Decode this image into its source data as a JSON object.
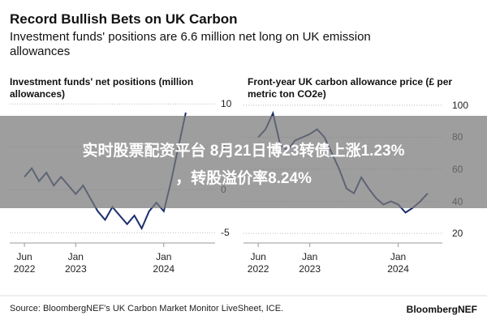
{
  "title": "Record Bullish Bets on UK Carbon",
  "subtitle": "Investment funds' positions are 6.6 million net long on UK emission allowances",
  "source": "Source: BloombergNEF's UK Carbon Market Monitor LiveSheet, ICE.",
  "brand": "BloombergNEF",
  "overlay": {
    "lines": [
      "实时股票配资平台 8月21日博23转债上涨1.23%",
      "，转股溢价率8.24%"
    ]
  },
  "chart_data": [
    {
      "type": "line",
      "title": "Investment funds' net positions (million allowances)",
      "x": [
        "2022-06",
        "2022-07",
        "2022-08",
        "2022-09",
        "2022-10",
        "2022-11",
        "2022-12",
        "2023-01",
        "2023-02",
        "2023-03",
        "2023-04",
        "2023-05",
        "2023-06",
        "2023-07",
        "2023-08",
        "2023-09",
        "2023-10",
        "2023-11",
        "2023-12",
        "2024-01",
        "2024-02",
        "2024-03",
        "2024-04"
      ],
      "values": [
        1.5,
        2.5,
        1.0,
        2.0,
        0.5,
        1.5,
        0.5,
        -0.5,
        0.5,
        -1.0,
        -2.5,
        -3.5,
        -2.0,
        -3.0,
        -4.0,
        -3.0,
        -4.5,
        -2.5,
        -1.5,
        -2.5,
        1.0,
        5.0,
        9.0
      ],
      "color": "#1b2f6e",
      "xlim": [
        "2022-04",
        "2024-08"
      ],
      "xticks": [
        {
          "value": "2022-06",
          "label": "Jun 2022"
        },
        {
          "value": "2023-01",
          "label": "Jan 2023"
        },
        {
          "value": "2024-01",
          "label": "Jan 2024"
        }
      ],
      "ylim": [
        -6.2,
        10.6
      ],
      "yticks": [
        10,
        5,
        0,
        -5
      ],
      "grid": true
    },
    {
      "type": "line",
      "title": "Front-year UK carbon allowance price (£ per metric ton CO2e)",
      "x": [
        "2022-06",
        "2022-07",
        "2022-08",
        "2022-09",
        "2022-10",
        "2022-11",
        "2022-12",
        "2023-01",
        "2023-02",
        "2023-03",
        "2023-04",
        "2023-05",
        "2023-06",
        "2023-07",
        "2023-08",
        "2023-09",
        "2023-10",
        "2023-11",
        "2023-12",
        "2024-01",
        "2024-02",
        "2024-03",
        "2024-04",
        "2024-05"
      ],
      "values": [
        80,
        85,
        95,
        75,
        72,
        78,
        80,
        82,
        85,
        80,
        70,
        60,
        48,
        45,
        55,
        48,
        42,
        38,
        40,
        38,
        33,
        36,
        40,
        45
      ],
      "color": "#1b2f6e",
      "xlim": [
        "2022-04",
        "2024-07"
      ],
      "xticks": [
        {
          "value": "2022-06",
          "label": "Jun 2022"
        },
        {
          "value": "2023-01",
          "label": "Jan 2023"
        },
        {
          "value": "2024-01",
          "label": "Jan 2024"
        }
      ],
      "ylim": [
        14,
        104
      ],
      "yticks": [
        100,
        80,
        60,
        40,
        20
      ],
      "grid": true
    }
  ]
}
